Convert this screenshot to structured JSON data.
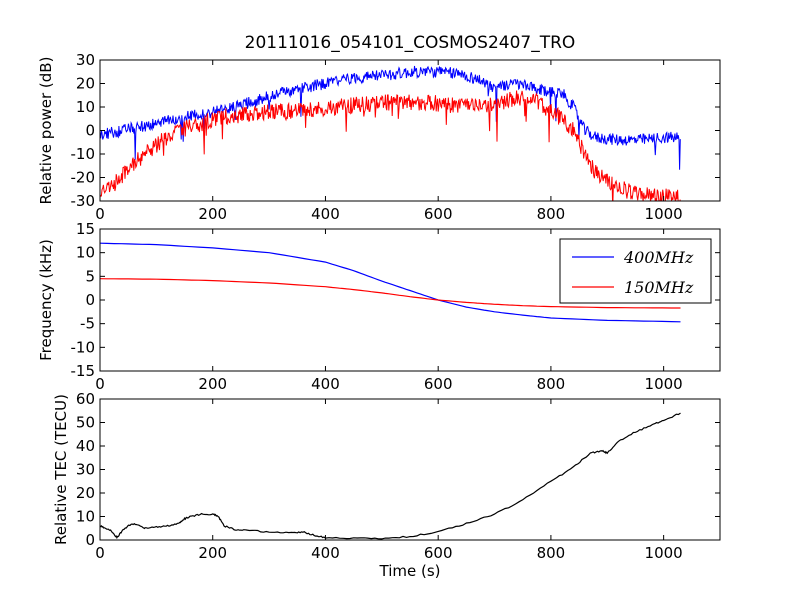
{
  "figure": {
    "title": "20111016_054101_COSMOS2407_TRO"
  },
  "chart_data": [
    {
      "type": "line",
      "title": "",
      "xlabel": "",
      "ylabel": "Relative power (dB)",
      "xlim": [
        0,
        1100
      ],
      "ylim": [
        -30,
        30
      ],
      "xticks": [
        0,
        200,
        400,
        600,
        800,
        1000
      ],
      "yticks": [
        -30,
        -20,
        -10,
        0,
        10,
        20,
        30
      ],
      "grid": false,
      "series": [
        {
          "color": "#0000ff",
          "noise": 2.5,
          "x": [
            0,
            40,
            80,
            120,
            160,
            200,
            240,
            280,
            320,
            360,
            400,
            440,
            480,
            520,
            560,
            600,
            640,
            680,
            700,
            740,
            780,
            820,
            840,
            860,
            880,
            920,
            960,
            1000,
            1030
          ],
          "y": [
            -2,
            0,
            2,
            4,
            6,
            8,
            10,
            13,
            16,
            18,
            20,
            22,
            23,
            24,
            25,
            25,
            24,
            21,
            18,
            20,
            17,
            16,
            10,
            0,
            -3,
            -4,
            -4,
            -3,
            -3
          ]
        },
        {
          "color": "#ff0000",
          "noise": 3.5,
          "x": [
            0,
            20,
            60,
            100,
            140,
            180,
            220,
            260,
            300,
            340,
            380,
            420,
            460,
            500,
            540,
            580,
            620,
            660,
            700,
            740,
            780,
            800,
            820,
            840,
            860,
            880,
            900,
            940,
            980,
            1030
          ],
          "y": [
            -26,
            -24,
            -14,
            -6,
            0,
            3,
            6,
            7,
            8,
            8,
            9,
            10,
            11,
            12,
            12,
            12,
            11,
            10,
            11,
            14,
            12,
            8,
            5,
            0,
            -10,
            -18,
            -22,
            -26,
            -28,
            -28
          ]
        }
      ]
    },
    {
      "type": "line",
      "title": "",
      "xlabel": "",
      "ylabel": "Frequency (kHz)",
      "xlim": [
        0,
        1100
      ],
      "ylim": [
        -15,
        15
      ],
      "xticks": [
        0,
        200,
        400,
        600,
        800,
        1000
      ],
      "yticks": [
        -15,
        -10,
        -5,
        0,
        5,
        10,
        15
      ],
      "grid": false,
      "legend": "top-right",
      "series": [
        {
          "name": "400MHz",
          "color": "#0000ff",
          "x": [
            0,
            100,
            200,
            300,
            400,
            450,
            500,
            550,
            600,
            650,
            700,
            750,
            800,
            900,
            1030
          ],
          "y": [
            12,
            11.7,
            11,
            10,
            8,
            6.2,
            4,
            2,
            0,
            -1.5,
            -2.5,
            -3.2,
            -3.8,
            -4.3,
            -4.6
          ]
        },
        {
          "name": "150MHz",
          "color": "#ff0000",
          "x": [
            0,
            100,
            200,
            300,
            400,
            450,
            500,
            550,
            600,
            650,
            700,
            750,
            800,
            900,
            1030
          ],
          "y": [
            4.5,
            4.4,
            4.1,
            3.6,
            2.8,
            2.2,
            1.5,
            0.7,
            0,
            -0.5,
            -0.9,
            -1.2,
            -1.4,
            -1.6,
            -1.7
          ]
        }
      ]
    },
    {
      "type": "line",
      "title": "",
      "xlabel": "Time (s)",
      "ylabel": "Relative TEC (TECU)",
      "xlim": [
        0,
        1100
      ],
      "ylim": [
        0,
        60
      ],
      "xticks": [
        0,
        200,
        400,
        600,
        800,
        1000
      ],
      "yticks": [
        0,
        10,
        20,
        30,
        40,
        50,
        60
      ],
      "grid": false,
      "series": [
        {
          "color": "#000000",
          "x": [
            0,
            10,
            20,
            30,
            40,
            50,
            60,
            70,
            80,
            100,
            120,
            140,
            150,
            160,
            180,
            200,
            210,
            220,
            240,
            260,
            300,
            340,
            360,
            380,
            400,
            450,
            500,
            550,
            600,
            650,
            700,
            750,
            800,
            840,
            870,
            890,
            900,
            920,
            950,
            980,
            1000,
            1030
          ],
          "y": [
            6,
            5,
            4,
            1,
            4,
            6,
            7,
            6,
            5,
            5.5,
            6,
            7,
            9,
            10,
            11,
            11,
            10,
            6,
            4.5,
            4,
            3.5,
            3,
            3.5,
            2,
            1,
            0.8,
            0.5,
            1.5,
            3.5,
            7,
            11,
            17,
            25,
            31,
            37,
            38,
            37,
            42,
            46,
            49,
            51,
            54
          ]
        }
      ]
    }
  ]
}
